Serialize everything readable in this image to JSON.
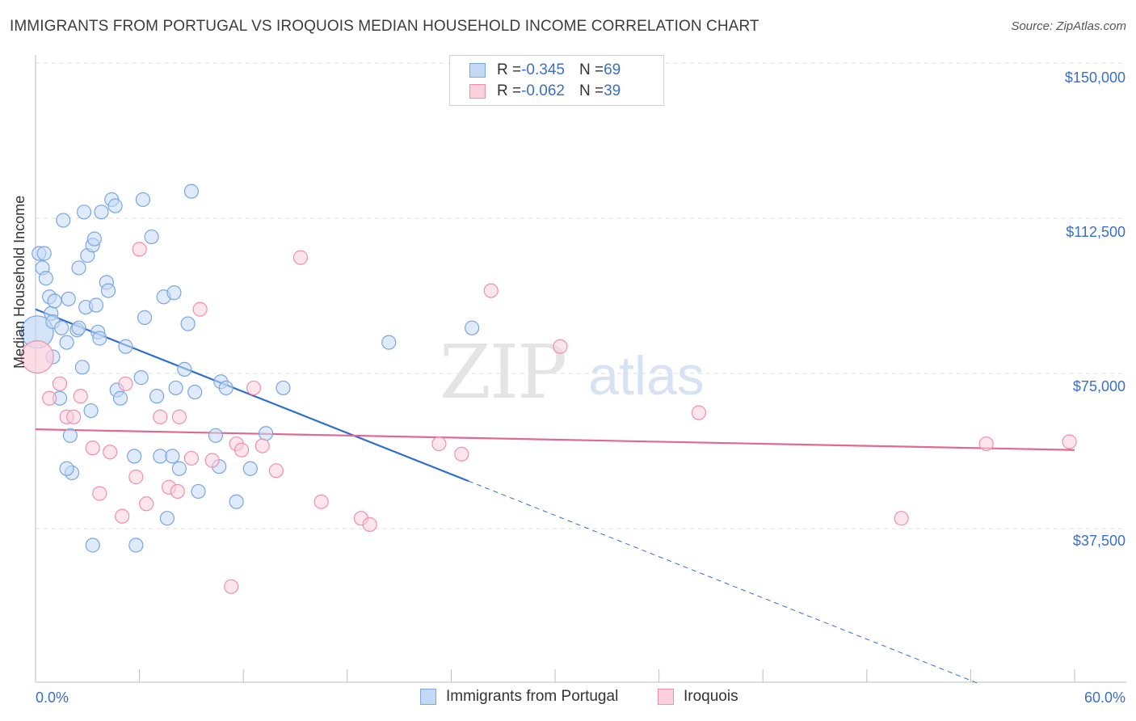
{
  "title": "IMMIGRANTS FROM PORTUGAL VS IROQUOIS MEDIAN HOUSEHOLD INCOME CORRELATION CHART",
  "source": "Source: ZipAtlas.com",
  "watermark": {
    "zip": "ZIP",
    "atlas": "atlas"
  },
  "legend_top": [
    {
      "r_label": "R = ",
      "r_value": "-0.345",
      "n_label": "N = ",
      "n_value": "69",
      "color": "#7aa6e0",
      "fill": "#c4d9f5"
    },
    {
      "r_label": "R = ",
      "r_value": "-0.062",
      "n_label": "N = ",
      "n_value": "39",
      "color": "#ee90ac",
      "fill": "#fbd0dc"
    }
  ],
  "legend_bottom": [
    {
      "label": "Immigrants from Portugal",
      "color": "#7aa6e0",
      "fill": "#c4d9f5"
    },
    {
      "label": "Iroquois",
      "color": "#ee90ac",
      "fill": "#fbd0dc"
    }
  ],
  "chart_data": {
    "type": "scatter",
    "title": "IMMIGRANTS FROM PORTUGAL VS IROQUOIS MEDIAN HOUSEHOLD INCOME CORRELATION CHART",
    "xlabel": "",
    "ylabel": "Median Household Income",
    "xlim": [
      0,
      60
    ],
    "ylim": [
      0,
      155000
    ],
    "x_tick_labels": [
      "0.0%",
      "60.0%"
    ],
    "y_ticks": [
      {
        "value": 37500,
        "label": "$37,500"
      },
      {
        "value": 75000,
        "label": "$75,000"
      },
      {
        "value": 112500,
        "label": "$112,500"
      },
      {
        "value": 150000,
        "label": "$150,000"
      }
    ],
    "grid": true,
    "legend_position": "top-center",
    "series": [
      {
        "name": "Immigrants from Portugal",
        "color": "#7aa6e0",
        "fill": "#c4d9f5",
        "points": [
          [
            0.1,
            85000
          ],
          [
            0.2,
            104000
          ],
          [
            0.4,
            100500
          ],
          [
            0.5,
            104000
          ],
          [
            0.6,
            98000
          ],
          [
            0.8,
            93500
          ],
          [
            0.9,
            89500
          ],
          [
            1.0,
            87500
          ],
          [
            1.0,
            79000
          ],
          [
            1.1,
            92500
          ],
          [
            1.4,
            69000
          ],
          [
            1.5,
            86000
          ],
          [
            1.6,
            112000
          ],
          [
            1.8,
            82500
          ],
          [
            1.9,
            93000
          ],
          [
            2.0,
            60000
          ],
          [
            2.1,
            51000
          ],
          [
            2.4,
            85500
          ],
          [
            2.5,
            86000
          ],
          [
            2.5,
            100500
          ],
          [
            2.7,
            76500
          ],
          [
            2.8,
            114000
          ],
          [
            2.9,
            91000
          ],
          [
            3.0,
            103500
          ],
          [
            3.2,
            66000
          ],
          [
            3.3,
            106000
          ],
          [
            3.4,
            107500
          ],
          [
            3.5,
            91500
          ],
          [
            3.6,
            85000
          ],
          [
            3.7,
            83500
          ],
          [
            3.8,
            114000
          ],
          [
            4.1,
            97000
          ],
          [
            4.2,
            95000
          ],
          [
            4.4,
            117000
          ],
          [
            4.6,
            115500
          ],
          [
            4.7,
            71000
          ],
          [
            4.9,
            69000
          ],
          [
            5.2,
            81500
          ],
          [
            5.7,
            55000
          ],
          [
            6.1,
            74000
          ],
          [
            6.2,
            117000
          ],
          [
            6.3,
            88500
          ],
          [
            6.7,
            108000
          ],
          [
            7.0,
            69500
          ],
          [
            7.2,
            55000
          ],
          [
            7.4,
            93500
          ],
          [
            7.9,
            55000
          ],
          [
            8.0,
            94500
          ],
          [
            8.1,
            71500
          ],
          [
            8.3,
            52000
          ],
          [
            8.6,
            76000
          ],
          [
            8.8,
            87000
          ],
          [
            9.0,
            119000
          ],
          [
            9.2,
            70500
          ],
          [
            9.4,
            46500
          ],
          [
            10.4,
            60000
          ],
          [
            10.6,
            52500
          ],
          [
            10.7,
            73000
          ],
          [
            11.0,
            71500
          ],
          [
            11.6,
            44000
          ],
          [
            12.4,
            52000
          ],
          [
            13.3,
            60500
          ],
          [
            14.3,
            71500
          ],
          [
            20.4,
            82500
          ],
          [
            25.2,
            86000
          ],
          [
            7.6,
            40000
          ],
          [
            5.8,
            33500
          ],
          [
            3.3,
            33500
          ],
          [
            1.8,
            52000
          ]
        ]
      },
      {
        "name": "Iroquois",
        "color": "#ee90ac",
        "fill": "#fbd0dc",
        "points": [
          [
            0.1,
            79000
          ],
          [
            0.8,
            69000
          ],
          [
            1.4,
            72500
          ],
          [
            1.8,
            64500
          ],
          [
            2.2,
            64500
          ],
          [
            2.6,
            69500
          ],
          [
            3.3,
            57000
          ],
          [
            3.7,
            46000
          ],
          [
            4.3,
            56000
          ],
          [
            5.0,
            40500
          ],
          [
            5.2,
            72500
          ],
          [
            5.8,
            50000
          ],
          [
            6.0,
            105000
          ],
          [
            6.4,
            43500
          ],
          [
            7.2,
            64500
          ],
          [
            7.7,
            47500
          ],
          [
            8.2,
            46500
          ],
          [
            8.3,
            64500
          ],
          [
            9.0,
            54500
          ],
          [
            9.5,
            90500
          ],
          [
            10.2,
            54000
          ],
          [
            11.3,
            23500
          ],
          [
            11.6,
            58000
          ],
          [
            11.9,
            56500
          ],
          [
            12.6,
            71500
          ],
          [
            13.1,
            57500
          ],
          [
            13.9,
            51500
          ],
          [
            15.3,
            103000
          ],
          [
            16.5,
            44000
          ],
          [
            18.8,
            40000
          ],
          [
            19.3,
            38500
          ],
          [
            23.3,
            58000
          ],
          [
            24.6,
            55500
          ],
          [
            26.3,
            95000
          ],
          [
            30.3,
            81500
          ],
          [
            38.3,
            65500
          ],
          [
            50.0,
            40000
          ],
          [
            54.9,
            58000
          ],
          [
            59.7,
            58500
          ]
        ]
      }
    ],
    "trendlines": [
      {
        "series": "Immigrants from Portugal",
        "color": "#2d6fce",
        "x_start": 0,
        "y_start": 90500,
        "x_end": 25,
        "y_end": 49000,
        "extension_x_end": 54.5,
        "extension_y_end": 0
      },
      {
        "series": "Iroquois",
        "color": "#e06894",
        "x_start": 0,
        "y_start": 61500,
        "x_end": 60,
        "y_end": 56500
      }
    ]
  }
}
